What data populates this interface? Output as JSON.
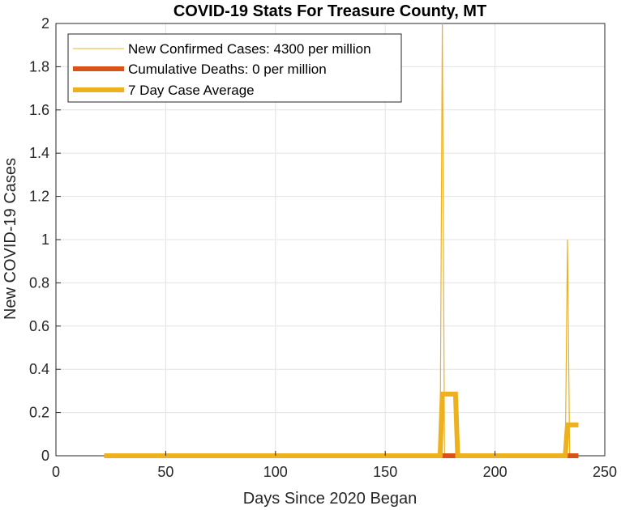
{
  "chart_data": {
    "type": "line",
    "title": "COVID-19 Stats For Treasure County, MT",
    "xlabel": "Days Since 2020 Began",
    "ylabel": "New COVID-19 Cases",
    "xlim": [
      0,
      250
    ],
    "ylim": [
      0,
      2
    ],
    "xticks": [
      0,
      50,
      100,
      150,
      200,
      250
    ],
    "yticks": [
      0,
      0.2,
      0.4,
      0.6,
      0.8,
      1,
      1.2,
      1.4,
      1.6,
      1.8,
      2
    ],
    "grid": true,
    "legend_position": "top-left",
    "series": [
      {
        "name": "New Confirmed Cases: 4300 per million",
        "color": "#EDB120",
        "style": "thin",
        "points": [
          [
            22,
            0
          ],
          [
            175,
            0
          ],
          [
            176,
            2
          ],
          [
            177,
            0
          ],
          [
            232,
            0
          ],
          [
            233,
            1
          ],
          [
            234,
            0
          ],
          [
            238,
            0
          ]
        ]
      },
      {
        "name": "Cumulative Deaths: 0 per million",
        "color": "#D95319",
        "style": "thick",
        "points": [
          [
            22,
            0
          ],
          [
            238,
            0
          ]
        ]
      },
      {
        "name": "7 Day Case Average",
        "color": "#EDB120",
        "style": "thick",
        "points": [
          [
            22,
            0
          ],
          [
            175,
            0
          ],
          [
            176,
            0.2857
          ],
          [
            182,
            0.2857
          ],
          [
            183,
            0
          ],
          [
            232,
            0
          ],
          [
            233,
            0.1429
          ],
          [
            238,
            0.1429
          ]
        ]
      }
    ]
  }
}
